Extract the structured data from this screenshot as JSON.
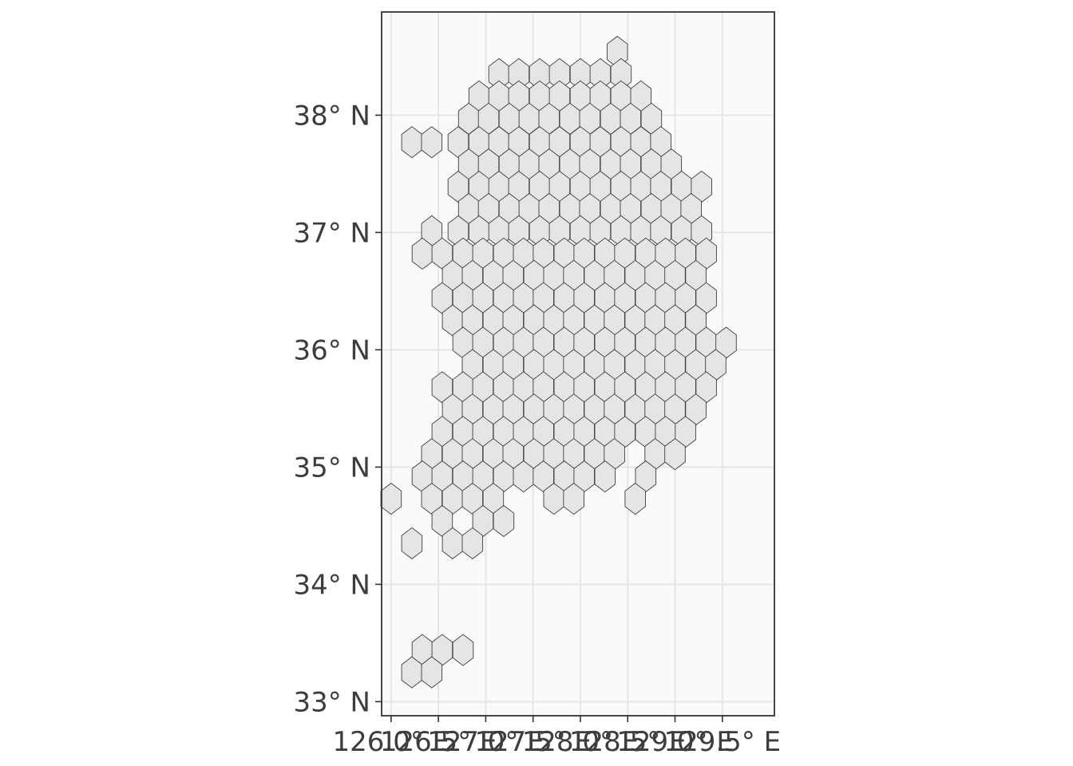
{
  "chart_data": {
    "type": "hexbin-map",
    "title": "",
    "xlabel": "",
    "ylabel": "",
    "xlim": [
      125.9,
      130.05
    ],
    "ylim": [
      32.88,
      38.88
    ],
    "grid": true,
    "panel_background": "#fafafa",
    "hex_fill": "#e5e5e5",
    "hex_stroke": "#3c3c3c",
    "x_ticks": [
      {
        "value": 126.0,
        "label": "126.0° E"
      },
      {
        "value": 126.5,
        "label": "126.5° E"
      },
      {
        "value": 127.0,
        "label": "127.0° E"
      },
      {
        "value": 127.5,
        "label": "127.5° E"
      },
      {
        "value": 128.0,
        "label": "128.0° E"
      },
      {
        "value": 128.5,
        "label": "128.5° E"
      },
      {
        "value": 129.0,
        "label": "129.0° E"
      },
      {
        "value": 129.5,
        "label": "129.5° E"
      }
    ],
    "y_ticks": [
      {
        "value": 33,
        "label": "33° N"
      },
      {
        "value": 34,
        "label": "34° N"
      },
      {
        "value": 35,
        "label": "35° N"
      },
      {
        "value": 36,
        "label": "36° N"
      },
      {
        "value": 37,
        "label": "37° N"
      },
      {
        "value": 38,
        "label": "38° N"
      }
    ],
    "hex_rows": [
      {
        "lat": 38.54,
        "lons": [
          128.39
        ]
      },
      {
        "lat": 38.35,
        "lons": [
          127.14,
          127.35,
          127.57,
          127.78,
          128.0,
          128.21,
          128.43
        ]
      },
      {
        "lat": 38.16,
        "lons": [
          126.93,
          127.14,
          127.35,
          127.57,
          127.78,
          128.0,
          128.21,
          128.43,
          128.64
        ]
      },
      {
        "lat": 37.97,
        "lons": [
          126.82,
          127.03,
          127.25,
          127.46,
          127.67,
          127.89,
          128.1,
          128.32,
          128.53,
          128.75
        ]
      },
      {
        "lat": 37.77,
        "lons": [
          126.22,
          126.43,
          126.71,
          126.93,
          127.14,
          127.35,
          127.57,
          127.78,
          128.0,
          128.21,
          128.43,
          128.64,
          128.85
        ]
      },
      {
        "lat": 37.58,
        "lons": [
          126.82,
          127.03,
          127.25,
          127.46,
          127.67,
          127.89,
          128.1,
          128.32,
          128.53,
          128.75,
          128.96
        ]
      },
      {
        "lat": 37.39,
        "lons": [
          126.71,
          126.93,
          127.14,
          127.35,
          127.57,
          127.78,
          128.0,
          128.21,
          128.43,
          128.64,
          128.85,
          129.07,
          129.28
        ]
      },
      {
        "lat": 37.2,
        "lons": [
          126.82,
          127.03,
          127.25,
          127.46,
          127.67,
          127.89,
          128.1,
          128.32,
          128.53,
          128.75,
          128.96,
          129.17
        ]
      },
      {
        "lat": 37.01,
        "lons": [
          126.43,
          126.71,
          126.93,
          127.14,
          127.35,
          127.57,
          127.78,
          128.0,
          128.21,
          128.43,
          128.64,
          128.85,
          129.07,
          129.28
        ]
      },
      {
        "lat": 36.82,
        "lons": [
          126.33,
          126.54,
          126.76,
          126.97,
          127.19,
          127.4,
          127.61,
          127.83,
          128.04,
          128.26,
          128.47,
          128.69,
          128.9,
          129.11,
          129.33
        ]
      },
      {
        "lat": 36.63,
        "lons": [
          126.65,
          126.86,
          127.08,
          127.29,
          127.51,
          127.72,
          127.93,
          128.15,
          128.36,
          128.58,
          128.79,
          129.0,
          129.22
        ]
      },
      {
        "lat": 36.44,
        "lons": [
          126.54,
          126.76,
          126.97,
          127.19,
          127.4,
          127.61,
          127.83,
          128.04,
          128.26,
          128.47,
          128.69,
          128.9,
          129.11,
          129.33
        ]
      },
      {
        "lat": 36.25,
        "lons": [
          126.65,
          126.86,
          127.08,
          127.29,
          127.51,
          127.72,
          127.93,
          128.15,
          128.36,
          128.58,
          128.79,
          129.0,
          129.22
        ]
      },
      {
        "lat": 36.06,
        "lons": [
          126.76,
          126.97,
          127.19,
          127.4,
          127.61,
          127.83,
          128.04,
          128.26,
          128.47,
          128.69,
          128.9,
          129.11,
          129.33,
          129.54
        ]
      },
      {
        "lat": 35.87,
        "lons": [
          126.86,
          127.08,
          127.29,
          127.51,
          127.72,
          127.93,
          128.15,
          128.36,
          128.58,
          128.79,
          129.0,
          129.22,
          129.43
        ]
      },
      {
        "lat": 35.68,
        "lons": [
          126.54,
          126.76,
          126.97,
          127.19,
          127.4,
          127.61,
          127.83,
          128.04,
          128.26,
          128.47,
          128.69,
          128.9,
          129.11,
          129.33
        ]
      },
      {
        "lat": 35.49,
        "lons": [
          126.65,
          126.86,
          127.08,
          127.29,
          127.51,
          127.72,
          127.93,
          128.15,
          128.36,
          128.58,
          128.79,
          129.0,
          129.22
        ]
      },
      {
        "lat": 35.3,
        "lons": [
          126.54,
          126.76,
          126.97,
          127.19,
          127.4,
          127.61,
          127.83,
          128.04,
          128.26,
          128.47,
          128.69,
          128.9,
          129.11
        ]
      },
      {
        "lat": 35.11,
        "lons": [
          126.43,
          126.65,
          126.86,
          127.08,
          127.29,
          127.51,
          127.72,
          127.93,
          128.15,
          128.36,
          128.79,
          129.0
        ]
      },
      {
        "lat": 34.92,
        "lons": [
          126.33,
          126.54,
          126.76,
          126.97,
          127.19,
          127.4,
          127.61,
          127.83,
          128.04,
          128.26,
          128.69
        ]
      },
      {
        "lat": 34.73,
        "lons": [
          126.0,
          126.43,
          126.65,
          126.86,
          127.08,
          127.72,
          127.93,
          128.58
        ]
      },
      {
        "lat": 34.54,
        "lons": [
          126.54,
          126.97,
          127.19
        ]
      },
      {
        "lat": 34.35,
        "lons": [
          126.22,
          126.65,
          126.86
        ]
      },
      {
        "lat": 33.44,
        "lons": [
          126.33,
          126.54,
          126.76
        ]
      },
      {
        "lat": 33.25,
        "lons": [
          126.22,
          126.43
        ]
      }
    ]
  }
}
